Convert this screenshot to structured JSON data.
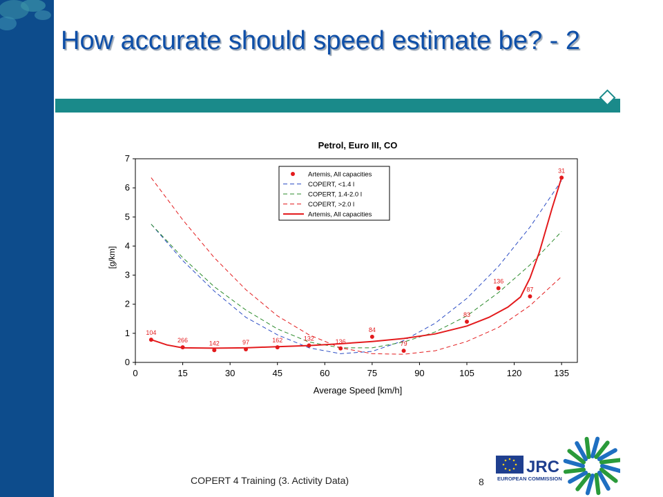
{
  "slide": {
    "title": "How accurate should speed estimate be? - 2",
    "footer": "COPERT 4 Training (3. Activity Data)",
    "page_number": "8",
    "logo": {
      "jrc_text": "JRC",
      "commission_text": "EUROPEAN COMMISSION"
    }
  },
  "colors": {
    "left_bar": "#0d4c8c",
    "title": "#0e4fa8",
    "title_bar": "#1a8a8a",
    "red": "#e31a1c",
    "blue": "#2b4cc4",
    "green": "#2a8a2a"
  },
  "chart_data": {
    "type": "line",
    "title": "Petrol, Euro III, CO",
    "xlabel": "Average Speed [km/h]",
    "ylabel": "[g/km]",
    "xlim": [
      0,
      140
    ],
    "ylim": [
      0,
      7
    ],
    "xticks": [
      0,
      15,
      30,
      45,
      60,
      75,
      90,
      105,
      120,
      135
    ],
    "yticks": [
      0,
      1,
      2,
      3,
      4,
      5,
      6,
      7
    ],
    "grid": true,
    "legend_position": "top-center",
    "legend": [
      "Artemis, All capacities",
      "COPERT, <1.4 l",
      "COPERT, 1.4-2.0 l",
      "COPERT, >2.0 l",
      "Artemis, All capacities"
    ],
    "points": {
      "name": "Artemis, All capacities",
      "x": [
        5,
        15,
        25,
        35,
        45,
        55,
        65,
        75,
        85,
        105,
        115,
        125,
        135
      ],
      "y": [
        0.78,
        0.52,
        0.42,
        0.45,
        0.52,
        0.58,
        0.48,
        0.88,
        0.4,
        1.4,
        2.55,
        2.27,
        6.35
      ],
      "labels": [
        "104",
        "266",
        "142",
        "97",
        "162",
        "132",
        "136",
        "84",
        "79",
        "83",
        "136",
        "87",
        "31"
      ]
    },
    "series": [
      {
        "name": "COPERT, <1.4 l",
        "style": "dashed",
        "color": "#2b4cc4",
        "x": [
          5,
          15,
          25,
          35,
          45,
          55,
          65,
          75,
          85,
          95,
          105,
          115,
          125,
          135
        ],
        "y": [
          4.75,
          3.5,
          2.45,
          1.55,
          0.95,
          0.5,
          0.3,
          0.38,
          0.75,
          1.35,
          2.2,
          3.3,
          4.65,
          6.25
        ]
      },
      {
        "name": "COPERT, 1.4-2.0 l",
        "style": "dashed",
        "color": "#2a8a2a",
        "x": [
          5,
          15,
          25,
          35,
          45,
          55,
          65,
          75,
          85,
          95,
          105,
          115,
          125,
          135
        ],
        "y": [
          4.75,
          3.6,
          2.6,
          1.8,
          1.15,
          0.7,
          0.5,
          0.5,
          0.7,
          1.05,
          1.6,
          2.4,
          3.35,
          4.5
        ]
      },
      {
        "name": "COPERT, >2.0 l",
        "style": "dashed",
        "color": "#e31a1c",
        "x": [
          5,
          15,
          25,
          35,
          45,
          55,
          65,
          75,
          85,
          95,
          105,
          115,
          125,
          135
        ],
        "y": [
          6.35,
          4.9,
          3.6,
          2.5,
          1.6,
          0.95,
          0.5,
          0.3,
          0.28,
          0.4,
          0.72,
          1.2,
          1.95,
          2.95
        ]
      },
      {
        "name": "Artemis, All capacities",
        "style": "solid",
        "color": "#e31a1c",
        "x": [
          5,
          10,
          15,
          25,
          35,
          45,
          55,
          65,
          75,
          85,
          95,
          105,
          112,
          118,
          122,
          125,
          128,
          132,
          135
        ],
        "y": [
          0.78,
          0.6,
          0.5,
          0.49,
          0.5,
          0.54,
          0.58,
          0.64,
          0.72,
          0.82,
          0.98,
          1.25,
          1.55,
          1.9,
          2.25,
          2.9,
          3.8,
          5.3,
          6.35
        ]
      }
    ]
  }
}
